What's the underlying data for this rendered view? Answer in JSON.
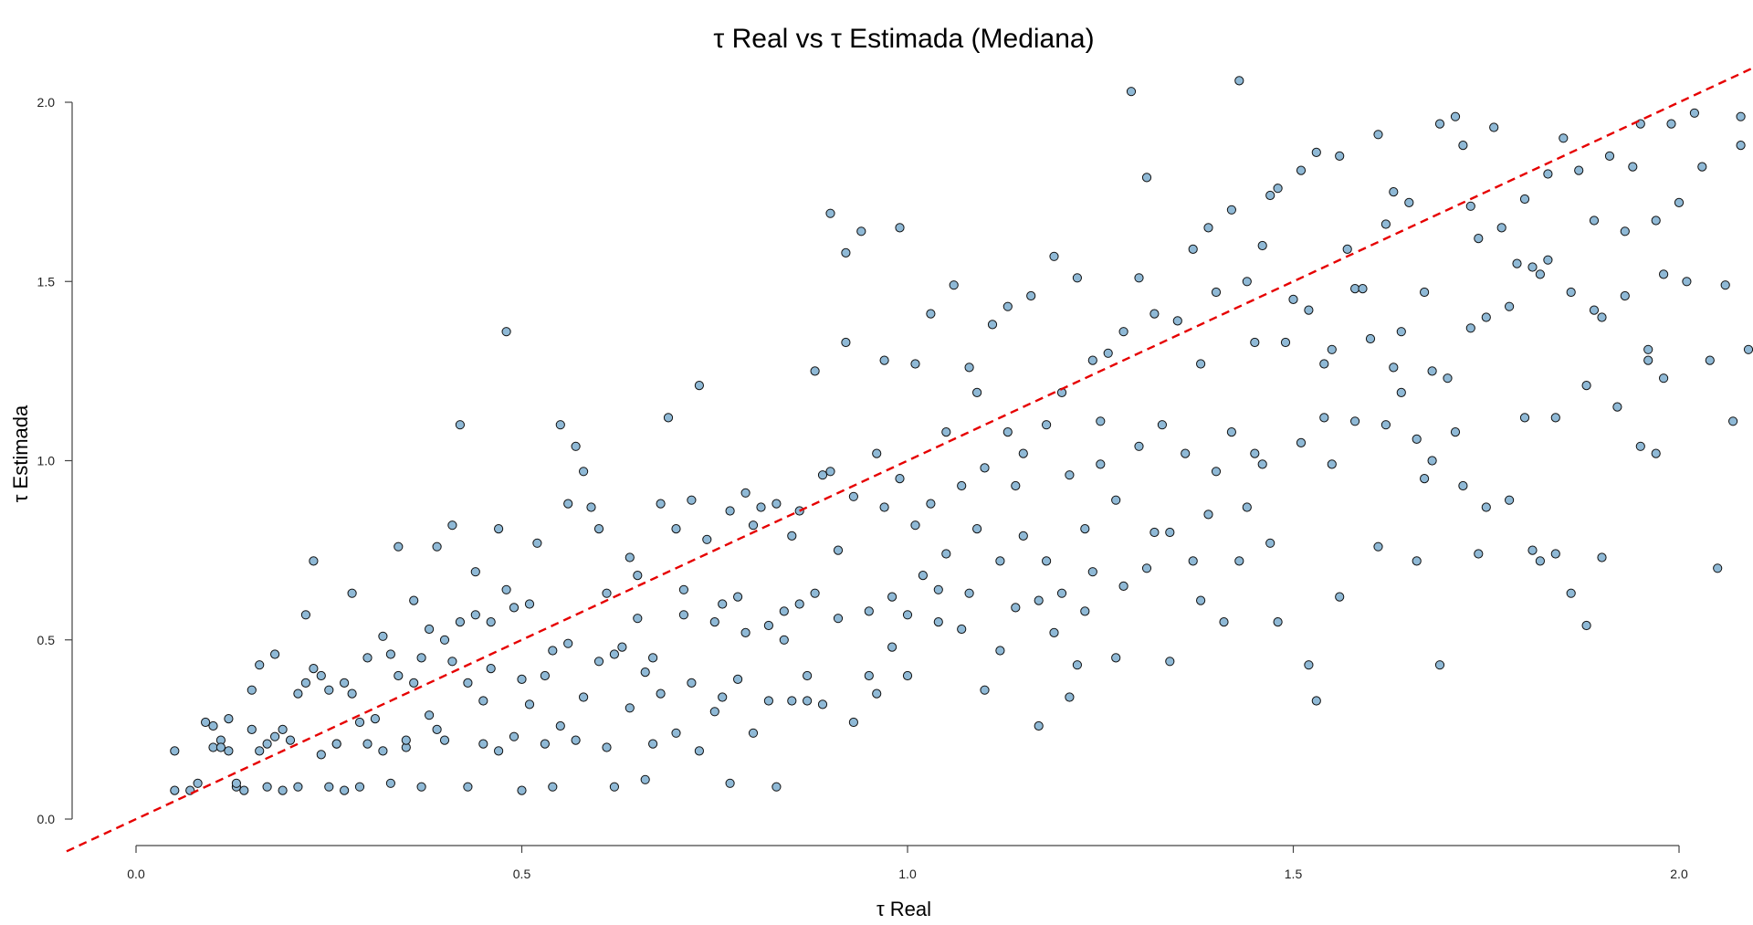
{
  "chart_data": {
    "type": "scatter",
    "title": "τ Real vs τ Estimada (Mediana)",
    "xlabel": "τ Real",
    "ylabel": "τ Estimada",
    "xlim": [
      -0.09,
      2.1
    ],
    "ylim": [
      -0.08,
      2.08
    ],
    "x_ticks": [
      "0.0",
      "0.5",
      "1.0",
      "1.5",
      "2.0"
    ],
    "x_tick_values": [
      0,
      0.5,
      1,
      1.5,
      2
    ],
    "y_ticks": [
      "0.0",
      "0.5",
      "1.0",
      "1.5",
      "2.0"
    ],
    "y_tick_values": [
      0,
      0.5,
      1,
      1.5,
      2
    ],
    "grid": false,
    "reference_line": {
      "slope": 1,
      "intercept": 0,
      "style": "dashed",
      "color": "#e60000"
    },
    "point_color": "#8fb9d6",
    "points": [
      [
        0.05,
        0.19
      ],
      [
        0.05,
        0.08
      ],
      [
        0.07,
        0.08
      ],
      [
        0.08,
        0.1
      ],
      [
        0.09,
        0.27
      ],
      [
        0.1,
        0.26
      ],
      [
        0.1,
        0.2
      ],
      [
        0.11,
        0.22
      ],
      [
        0.11,
        0.2
      ],
      [
        0.12,
        0.28
      ],
      [
        0.12,
        0.19
      ],
      [
        0.13,
        0.09
      ],
      [
        0.13,
        0.1
      ],
      [
        0.14,
        0.08
      ],
      [
        0.15,
        0.25
      ],
      [
        0.15,
        0.36
      ],
      [
        0.16,
        0.43
      ],
      [
        0.16,
        0.19
      ],
      [
        0.17,
        0.21
      ],
      [
        0.17,
        0.09
      ],
      [
        0.18,
        0.46
      ],
      [
        0.18,
        0.23
      ],
      [
        0.19,
        0.25
      ],
      [
        0.19,
        0.08
      ],
      [
        0.2,
        0.22
      ],
      [
        0.21,
        0.35
      ],
      [
        0.21,
        0.09
      ],
      [
        0.22,
        0.57
      ],
      [
        0.22,
        0.38
      ],
      [
        0.23,
        0.72
      ],
      [
        0.23,
        0.42
      ],
      [
        0.24,
        0.4
      ],
      [
        0.24,
        0.18
      ],
      [
        0.25,
        0.36
      ],
      [
        0.25,
        0.09
      ],
      [
        0.26,
        0.21
      ],
      [
        0.26,
        0.21
      ],
      [
        0.27,
        0.38
      ],
      [
        0.27,
        0.08
      ],
      [
        0.28,
        0.63
      ],
      [
        0.28,
        0.35
      ],
      [
        0.29,
        0.27
      ],
      [
        0.29,
        0.09
      ],
      [
        0.3,
        0.45
      ],
      [
        0.3,
        0.21
      ],
      [
        0.31,
        0.28
      ],
      [
        0.32,
        0.51
      ],
      [
        0.32,
        0.19
      ],
      [
        0.33,
        0.46
      ],
      [
        0.33,
        0.1
      ],
      [
        0.34,
        0.76
      ],
      [
        0.34,
        0.4
      ],
      [
        0.35,
        0.2
      ],
      [
        0.35,
        0.22
      ],
      [
        0.36,
        0.61
      ],
      [
        0.36,
        0.38
      ],
      [
        0.37,
        0.45
      ],
      [
        0.37,
        0.09
      ],
      [
        0.38,
        0.53
      ],
      [
        0.38,
        0.29
      ],
      [
        0.39,
        0.76
      ],
      [
        0.39,
        0.25
      ],
      [
        0.4,
        0.5
      ],
      [
        0.4,
        0.22
      ],
      [
        0.41,
        0.82
      ],
      [
        0.41,
        0.44
      ],
      [
        0.42,
        1.1
      ],
      [
        0.42,
        0.55
      ],
      [
        0.43,
        0.38
      ],
      [
        0.43,
        0.09
      ],
      [
        0.44,
        0.69
      ],
      [
        0.44,
        0.57
      ],
      [
        0.45,
        0.33
      ],
      [
        0.45,
        0.21
      ],
      [
        0.46,
        0.55
      ],
      [
        0.46,
        0.42
      ],
      [
        0.47,
        0.81
      ],
      [
        0.47,
        0.19
      ],
      [
        0.48,
        0.64
      ],
      [
        0.48,
        1.36
      ],
      [
        0.49,
        0.59
      ],
      [
        0.49,
        0.23
      ],
      [
        0.5,
        0.39
      ],
      [
        0.5,
        0.08
      ],
      [
        0.51,
        0.6
      ],
      [
        0.51,
        0.32
      ],
      [
        0.52,
        0.77
      ],
      [
        0.53,
        0.4
      ],
      [
        0.53,
        0.21
      ],
      [
        0.54,
        0.47
      ],
      [
        0.54,
        0.09
      ],
      [
        0.55,
        1.1
      ],
      [
        0.55,
        0.26
      ],
      [
        0.56,
        0.88
      ],
      [
        0.56,
        0.49
      ],
      [
        0.57,
        1.04
      ],
      [
        0.57,
        0.22
      ],
      [
        0.58,
        0.97
      ],
      [
        0.58,
        0.34
      ],
      [
        0.59,
        0.87
      ],
      [
        0.6,
        0.81
      ],
      [
        0.6,
        0.44
      ],
      [
        0.61,
        0.63
      ],
      [
        0.61,
        0.2
      ],
      [
        0.62,
        0.46
      ],
      [
        0.62,
        0.09
      ],
      [
        0.63,
        0.48
      ],
      [
        0.64,
        0.73
      ],
      [
        0.64,
        0.31
      ],
      [
        0.65,
        0.68
      ],
      [
        0.65,
        0.56
      ],
      [
        0.66,
        0.41
      ],
      [
        0.66,
        0.11
      ],
      [
        0.67,
        0.45
      ],
      [
        0.67,
        0.21
      ],
      [
        0.68,
        0.88
      ],
      [
        0.68,
        0.35
      ],
      [
        0.69,
        1.12
      ],
      [
        0.7,
        0.81
      ],
      [
        0.7,
        0.24
      ],
      [
        0.71,
        0.64
      ],
      [
        0.71,
        0.57
      ],
      [
        0.72,
        0.89
      ],
      [
        0.72,
        0.38
      ],
      [
        0.73,
        1.21
      ],
      [
        0.73,
        0.19
      ],
      [
        0.74,
        0.78
      ],
      [
        0.75,
        0.55
      ],
      [
        0.75,
        0.3
      ],
      [
        0.76,
        0.34
      ],
      [
        0.76,
        0.6
      ],
      [
        0.77,
        0.86
      ],
      [
        0.77,
        0.1
      ],
      [
        0.78,
        0.62
      ],
      [
        0.78,
        0.39
      ],
      [
        0.79,
        0.91
      ],
      [
        0.79,
        0.52
      ],
      [
        0.8,
        0.82
      ],
      [
        0.8,
        0.24
      ],
      [
        0.81,
        0.87
      ],
      [
        0.82,
        0.54
      ],
      [
        0.82,
        0.33
      ],
      [
        0.83,
        0.88
      ],
      [
        0.83,
        0.09
      ],
      [
        0.84,
        0.58
      ],
      [
        0.84,
        0.5
      ],
      [
        0.85,
        0.79
      ],
      [
        0.85,
        0.33
      ],
      [
        0.86,
        0.86
      ],
      [
        0.86,
        0.6
      ],
      [
        0.87,
        0.4
      ],
      [
        0.87,
        0.33
      ],
      [
        0.88,
        1.25
      ],
      [
        0.88,
        0.63
      ],
      [
        0.89,
        0.96
      ],
      [
        0.89,
        0.32
      ],
      [
        0.9,
        0.97
      ],
      [
        0.9,
        1.69
      ],
      [
        0.91,
        0.75
      ],
      [
        0.91,
        0.56
      ],
      [
        0.92,
        1.58
      ],
      [
        0.92,
        1.33
      ],
      [
        0.93,
        0.9
      ],
      [
        0.93,
        0.27
      ],
      [
        0.94,
        1.64
      ],
      [
        0.95,
        0.58
      ],
      [
        0.95,
        0.4
      ],
      [
        0.96,
        1.02
      ],
      [
        0.96,
        0.35
      ],
      [
        0.97,
        0.87
      ],
      [
        0.97,
        1.28
      ],
      [
        0.98,
        0.62
      ],
      [
        0.98,
        0.48
      ],
      [
        0.99,
        1.65
      ],
      [
        0.99,
        0.95
      ],
      [
        1.0,
        0.57
      ],
      [
        1.0,
        0.4
      ],
      [
        1.01,
        1.27
      ],
      [
        1.01,
        0.82
      ],
      [
        1.02,
        0.68
      ],
      [
        1.03,
        1.41
      ],
      [
        1.03,
        0.88
      ],
      [
        1.04,
        0.55
      ],
      [
        1.04,
        0.64
      ],
      [
        1.05,
        1.08
      ],
      [
        1.05,
        0.74
      ],
      [
        1.06,
        1.49
      ],
      [
        1.07,
        0.93
      ],
      [
        1.07,
        0.53
      ],
      [
        1.08,
        1.26
      ],
      [
        1.08,
        0.63
      ],
      [
        1.09,
        1.19
      ],
      [
        1.09,
        0.81
      ],
      [
        1.1,
        0.98
      ],
      [
        1.1,
        0.36
      ],
      [
        1.11,
        1.38
      ],
      [
        1.12,
        0.72
      ],
      [
        1.12,
        0.47
      ],
      [
        1.13,
        1.43
      ],
      [
        1.13,
        1.08
      ],
      [
        1.14,
        0.59
      ],
      [
        1.14,
        0.93
      ],
      [
        1.15,
        1.02
      ],
      [
        1.15,
        0.79
      ],
      [
        1.16,
        1.46
      ],
      [
        1.17,
        0.61
      ],
      [
        1.17,
        0.26
      ],
      [
        1.18,
        1.1
      ],
      [
        1.18,
        0.72
      ],
      [
        1.19,
        1.57
      ],
      [
        1.19,
        0.52
      ],
      [
        1.2,
        1.19
      ],
      [
        1.2,
        0.63
      ],
      [
        1.21,
        0.96
      ],
      [
        1.21,
        0.34
      ],
      [
        1.22,
        1.51
      ],
      [
        1.22,
        0.43
      ],
      [
        1.23,
        0.81
      ],
      [
        1.23,
        0.58
      ],
      [
        1.24,
        1.28
      ],
      [
        1.24,
        0.69
      ],
      [
        1.25,
        1.11
      ],
      [
        1.25,
        0.99
      ],
      [
        1.26,
        1.3
      ],
      [
        1.27,
        0.89
      ],
      [
        1.27,
        0.45
      ],
      [
        1.28,
        1.36
      ],
      [
        1.28,
        0.65
      ],
      [
        1.29,
        2.03
      ],
      [
        1.3,
        1.51
      ],
      [
        1.3,
        1.04
      ],
      [
        1.31,
        1.79
      ],
      [
        1.31,
        0.7
      ],
      [
        1.32,
        1.41
      ],
      [
        1.32,
        0.8
      ],
      [
        1.33,
        1.1
      ],
      [
        1.34,
        0.8
      ],
      [
        1.34,
        0.44
      ],
      [
        1.35,
        1.39
      ],
      [
        1.36,
        1.02
      ],
      [
        1.37,
        1.59
      ],
      [
        1.37,
        0.72
      ],
      [
        1.38,
        1.27
      ],
      [
        1.38,
        0.61
      ],
      [
        1.39,
        1.65
      ],
      [
        1.39,
        0.85
      ],
      [
        1.4,
        1.47
      ],
      [
        1.4,
        0.97
      ],
      [
        1.41,
        0.55
      ],
      [
        1.42,
        1.7
      ],
      [
        1.42,
        1.08
      ],
      [
        1.43,
        2.06
      ],
      [
        1.43,
        0.72
      ],
      [
        1.44,
        1.5
      ],
      [
        1.44,
        0.87
      ],
      [
        1.45,
        1.33
      ],
      [
        1.45,
        1.02
      ],
      [
        1.46,
        1.6
      ],
      [
        1.46,
        0.99
      ],
      [
        1.47,
        1.74
      ],
      [
        1.47,
        0.77
      ],
      [
        1.48,
        1.76
      ],
      [
        1.48,
        0.55
      ],
      [
        1.49,
        1.33
      ],
      [
        1.5,
        1.45
      ],
      [
        1.51,
        1.81
      ],
      [
        1.51,
        1.05
      ],
      [
        1.52,
        1.42
      ],
      [
        1.52,
        0.43
      ],
      [
        1.53,
        1.86
      ],
      [
        1.53,
        0.33
      ],
      [
        1.54,
        1.12
      ],
      [
        1.54,
        1.27
      ],
      [
        1.55,
        0.99
      ],
      [
        1.55,
        1.31
      ],
      [
        1.56,
        1.85
      ],
      [
        1.56,
        0.62
      ],
      [
        1.57,
        1.59
      ],
      [
        1.58,
        1.48
      ],
      [
        1.58,
        1.11
      ],
      [
        1.59,
        1.48
      ],
      [
        1.6,
        1.34
      ],
      [
        1.61,
        1.91
      ],
      [
        1.61,
        0.76
      ],
      [
        1.62,
        1.66
      ],
      [
        1.62,
        1.1
      ],
      [
        1.63,
        1.75
      ],
      [
        1.63,
        1.26
      ],
      [
        1.64,
        1.36
      ],
      [
        1.64,
        1.19
      ],
      [
        1.65,
        1.72
      ],
      [
        1.66,
        1.06
      ],
      [
        1.66,
        0.72
      ],
      [
        1.67,
        1.47
      ],
      [
        1.67,
        0.95
      ],
      [
        1.68,
        1.25
      ],
      [
        1.68,
        1.0
      ],
      [
        1.69,
        1.94
      ],
      [
        1.69,
        0.43
      ],
      [
        1.7,
        1.23
      ],
      [
        1.71,
        1.96
      ],
      [
        1.71,
        1.08
      ],
      [
        1.72,
        1.88
      ],
      [
        1.72,
        0.93
      ],
      [
        1.73,
        1.71
      ],
      [
        1.73,
        1.37
      ],
      [
        1.74,
        1.62
      ],
      [
        1.74,
        0.74
      ],
      [
        1.75,
        1.4
      ],
      [
        1.75,
        0.87
      ],
      [
        1.76,
        1.93
      ],
      [
        1.77,
        1.65
      ],
      [
        1.78,
        1.43
      ],
      [
        1.78,
        0.89
      ],
      [
        1.79,
        1.55
      ],
      [
        1.8,
        1.12
      ],
      [
        1.8,
        1.73
      ],
      [
        1.81,
        1.54
      ],
      [
        1.81,
        0.75
      ],
      [
        1.82,
        1.52
      ],
      [
        1.82,
        0.72
      ],
      [
        1.83,
        1.8
      ],
      [
        1.83,
        1.56
      ],
      [
        1.84,
        0.74
      ],
      [
        1.84,
        1.12
      ],
      [
        1.85,
        1.9
      ],
      [
        1.86,
        1.47
      ],
      [
        1.86,
        0.63
      ],
      [
        1.87,
        1.81
      ],
      [
        1.88,
        1.21
      ],
      [
        1.88,
        0.54
      ],
      [
        1.89,
        1.67
      ],
      [
        1.89,
        1.42
      ],
      [
        1.9,
        1.4
      ],
      [
        1.9,
        0.73
      ],
      [
        1.91,
        1.85
      ],
      [
        1.92,
        1.15
      ],
      [
        1.93,
        1.46
      ],
      [
        1.93,
        1.64
      ],
      [
        1.94,
        1.82
      ],
      [
        1.95,
        1.94
      ],
      [
        1.95,
        1.04
      ],
      [
        1.96,
        1.28
      ],
      [
        1.96,
        1.31
      ],
      [
        1.97,
        1.02
      ],
      [
        1.97,
        1.67
      ],
      [
        1.98,
        1.52
      ],
      [
        1.98,
        1.23
      ],
      [
        1.99,
        1.94
      ],
      [
        2.0,
        1.72
      ],
      [
        2.01,
        1.5
      ],
      [
        2.02,
        1.97
      ],
      [
        2.03,
        1.82
      ],
      [
        2.04,
        1.28
      ],
      [
        2.05,
        0.7
      ],
      [
        2.06,
        1.49
      ],
      [
        2.07,
        1.11
      ],
      [
        2.08,
        1.96
      ],
      [
        2.08,
        1.88
      ],
      [
        2.09,
        1.31
      ]
    ]
  }
}
